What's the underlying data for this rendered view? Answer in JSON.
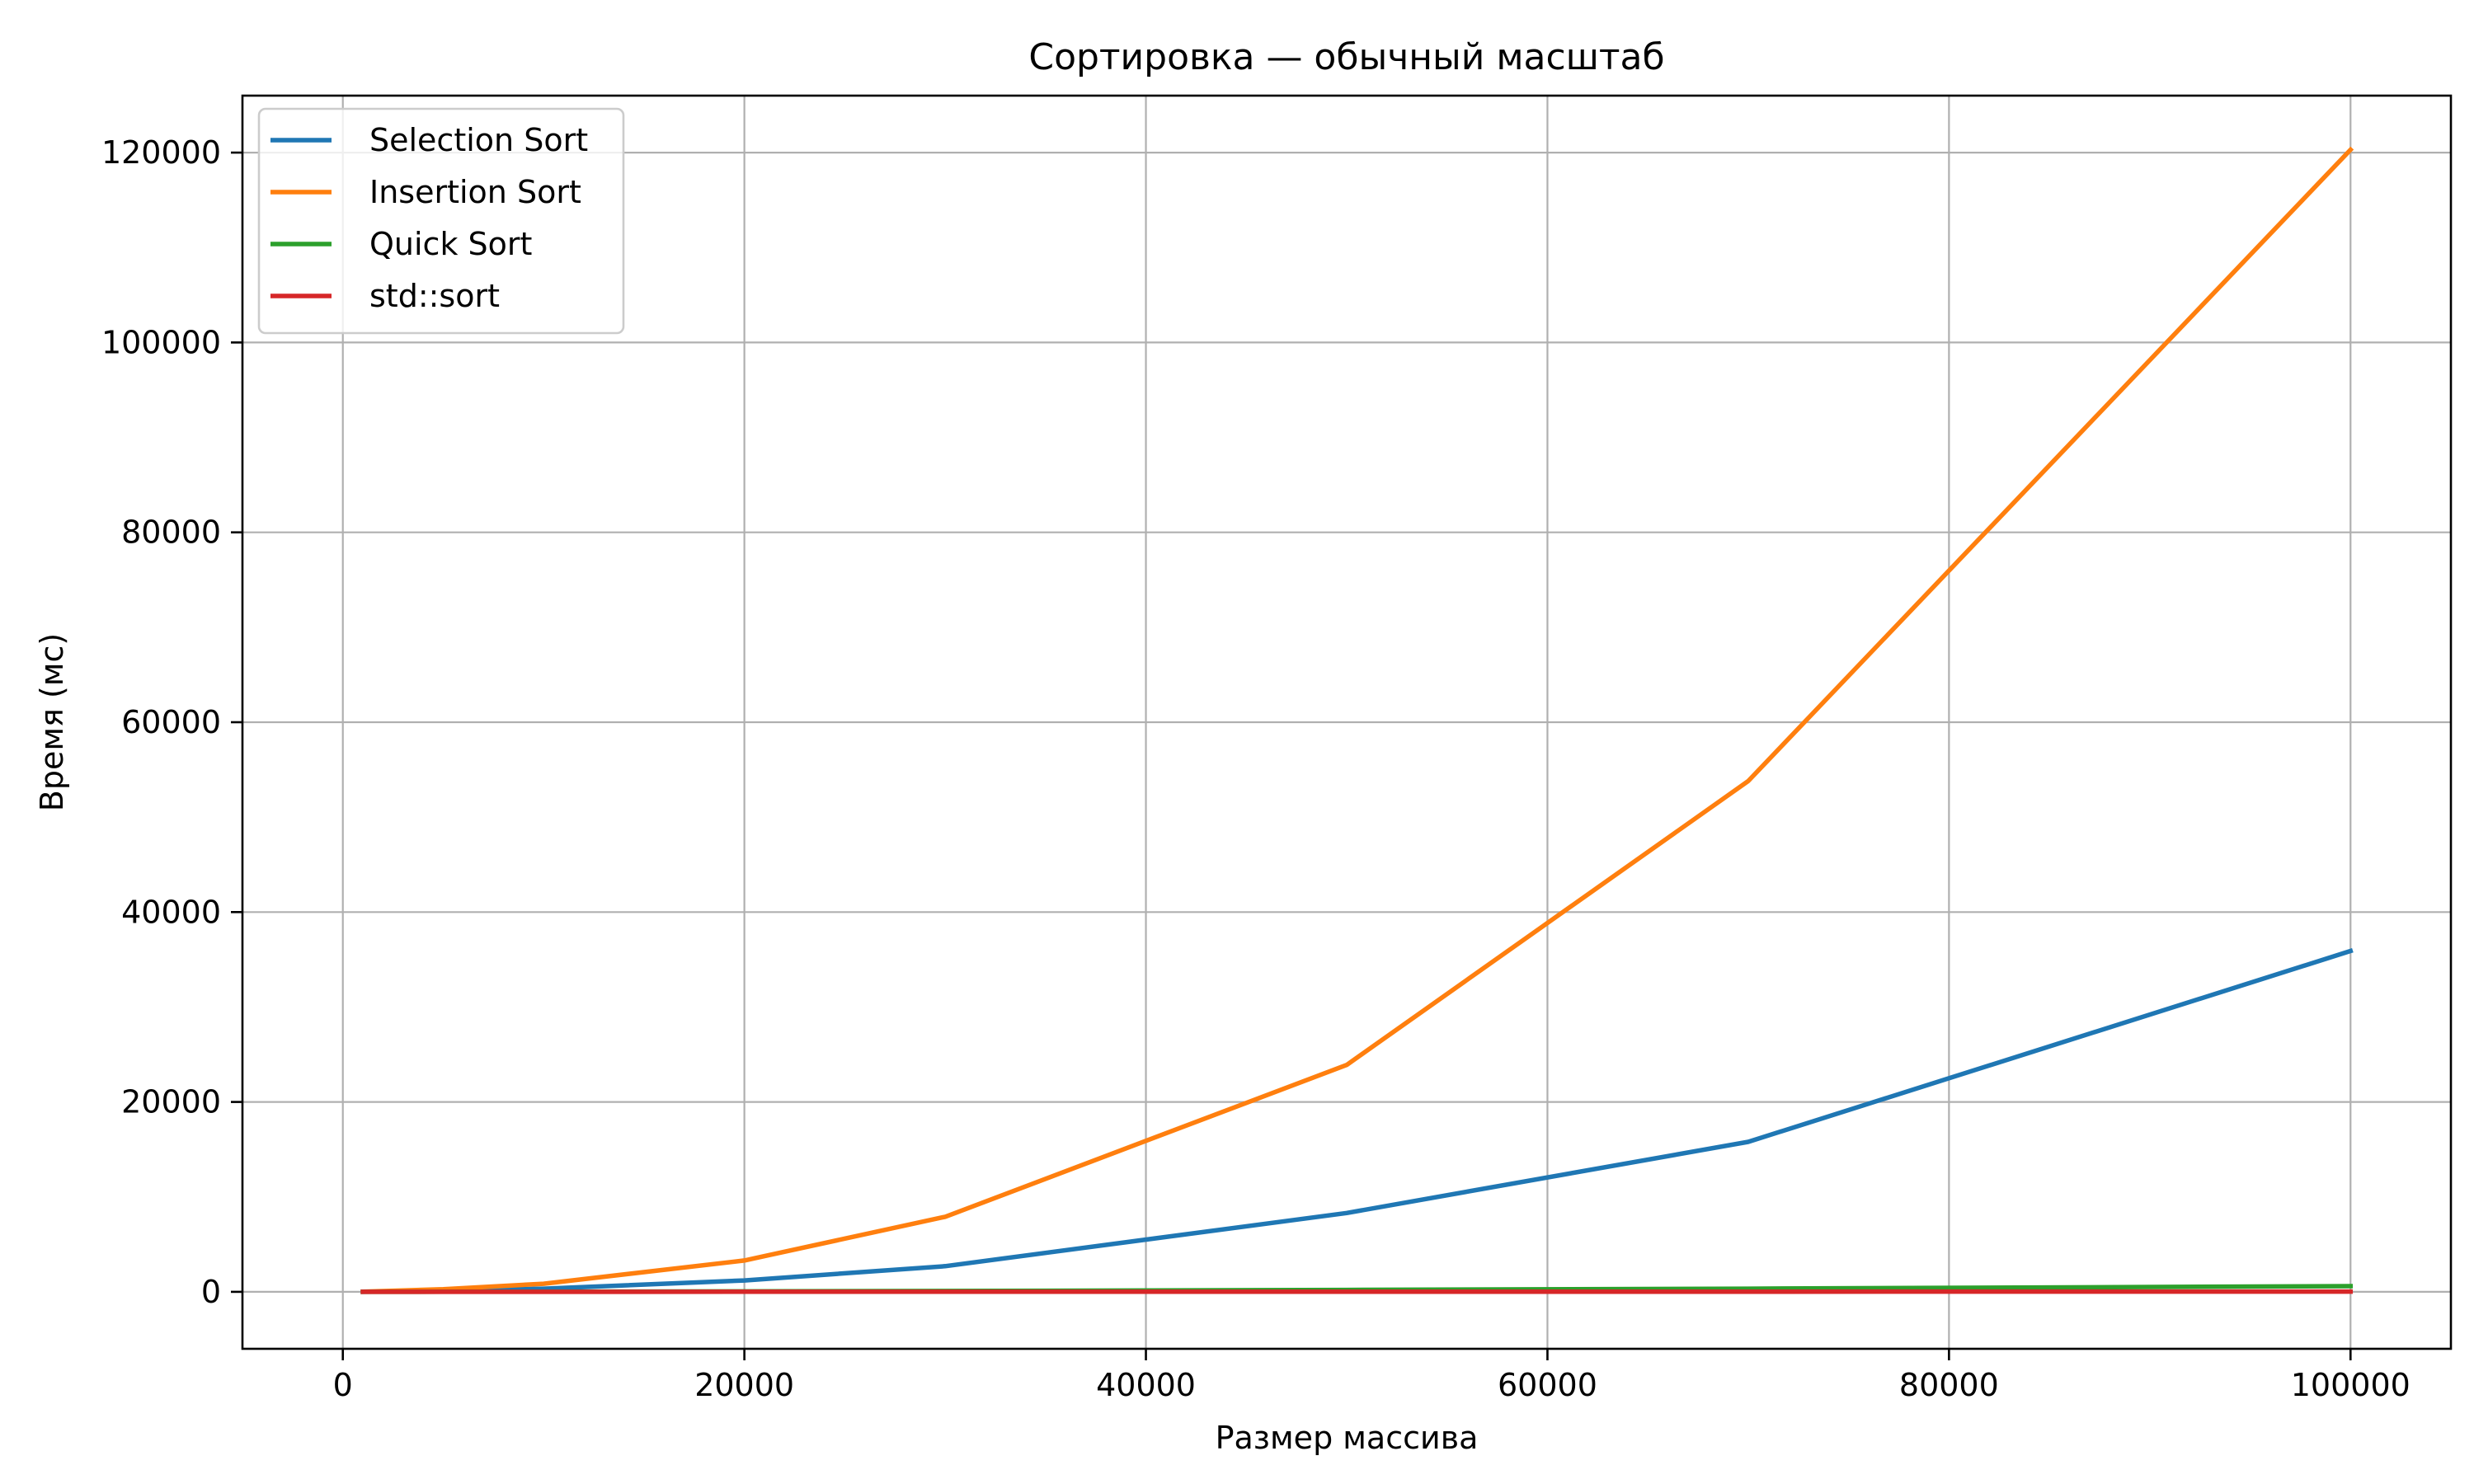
{
  "chart_data": {
    "type": "line",
    "title": "Сортировка — обычный масштаб",
    "xlabel": "Размер массива",
    "ylabel": "Время (мс)",
    "xlim": [
      -5000,
      105000
    ],
    "ylim": [
      -6000,
      126000
    ],
    "xticks": [
      0,
      20000,
      40000,
      60000,
      80000,
      100000
    ],
    "xtick_labels": [
      "0",
      "20000",
      "40000",
      "60000",
      "80000",
      "100000"
    ],
    "yticks": [
      0,
      20000,
      40000,
      60000,
      80000,
      100000,
      120000
    ],
    "ytick_labels": [
      "0",
      "20000",
      "40000",
      "60000",
      "80000",
      "100000",
      "120000"
    ],
    "grid": true,
    "legend_position": "top-left",
    "x": [
      1000,
      5000,
      10000,
      20000,
      30000,
      50000,
      70000,
      100000
    ],
    "series": [
      {
        "name": "Selection Sort",
        "color": "#1f77b4",
        "values": [
          4,
          90,
          330,
          1200,
          2700,
          8300,
          15800,
          35900
        ]
      },
      {
        "name": "Insertion Sort",
        "color": "#ff7f0e",
        "values": [
          12,
          280,
          850,
          3300,
          7900,
          23900,
          53800,
          120300
        ]
      },
      {
        "name": "Quick Sort",
        "color": "#2ca02c",
        "values": [
          1,
          6,
          15,
          45,
          85,
          200,
          330,
          600
        ]
      },
      {
        "name": "std::sort",
        "color": "#d62728",
        "values": [
          0,
          1,
          3,
          6,
          9,
          15,
          22,
          30
        ]
      }
    ]
  }
}
